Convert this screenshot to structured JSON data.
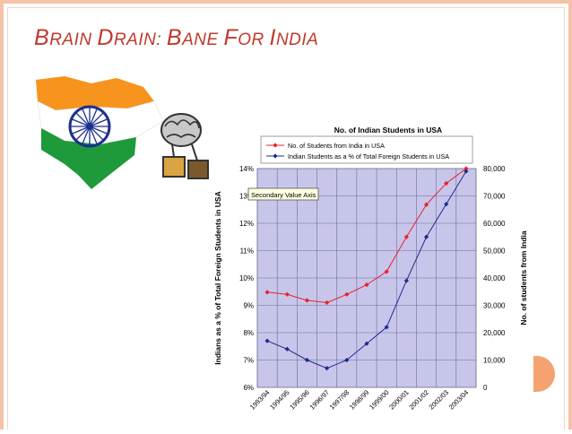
{
  "slide": {
    "title_parts": [
      "B",
      "RAIN ",
      "D",
      "RAIN: ",
      "B",
      "ANE ",
      "F",
      "OR ",
      "I",
      "NDIA"
    ]
  },
  "chart_data": {
    "type": "line",
    "title": "No. of Indian Students in USA",
    "categories": [
      "1993/94",
      "1994/95",
      "1995/96",
      "1996/97",
      "1997/98",
      "1998/99",
      "1999/00",
      "2000/01",
      "2001/02",
      "2002/03",
      "2003/04"
    ],
    "series": [
      {
        "name": "No. of Students from India in USA",
        "axis": "secondary",
        "color": "#e8212b",
        "values": [
          34800,
          34000,
          31800,
          31000,
          34000,
          37500,
          42300,
          55000,
          66800,
          74600,
          80000
        ]
      },
      {
        "name": "Indian Students as a % of Total Foreign Students in USA",
        "axis": "primary",
        "color": "#1f2a8c",
        "values": [
          7.7,
          7.4,
          7.0,
          6.7,
          7.0,
          7.6,
          8.2,
          9.9,
          11.5,
          12.7,
          13.9
        ]
      }
    ],
    "ylabel": "Indians as a % of Total Foreign Students in USA",
    "y2label": "No. of students from India",
    "ylim": [
      6,
      14
    ],
    "y2lim": [
      0,
      80000
    ],
    "yticks": [
      "6%",
      "7%",
      "8%",
      "9%",
      "10%",
      "11%",
      "12%",
      "13%",
      "14%"
    ],
    "y2ticks": [
      "0",
      "10,000",
      "20,000",
      "30,000",
      "40,000",
      "50,000",
      "60,000",
      "70,000",
      "80,000"
    ],
    "annotation": "Secondary Value Axis",
    "grid": true,
    "legend": "top-left"
  }
}
